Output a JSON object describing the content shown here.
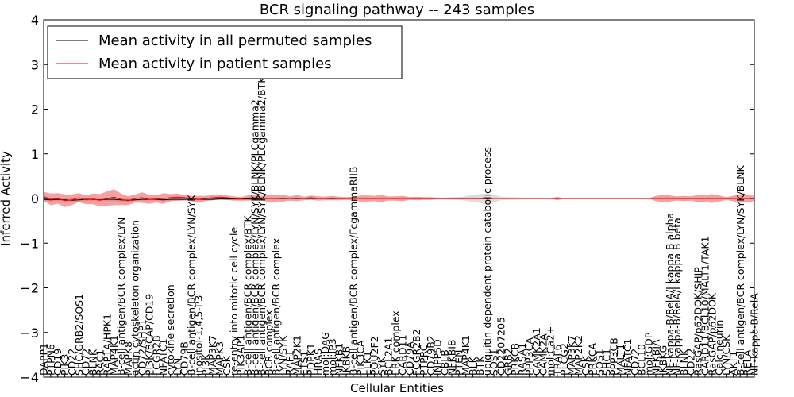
{
  "chart_data": {
    "type": "line",
    "title": "BCR signaling pathway -- 243 samples",
    "xlabel": "Cellular Entities",
    "ylabel": "Inferred Activity",
    "ylim": [
      -4,
      4
    ],
    "yticks": [
      "4",
      "3",
      "2",
      "1",
      "0",
      "−1",
      "−2",
      "−3",
      "−4"
    ],
    "legend": {
      "placement": "top-left",
      "items": [
        {
          "label": "Mean activity in all permuted samples",
          "color": "#000000"
        },
        {
          "label": "Mean activity in patient samples",
          "color": "#ff0000"
        }
      ]
    },
    "categories": [
      "DAPP1",
      "PTPN6",
      "CD19",
      "PIK3",
      "CD22",
      "SHC/GRB2/SOS1",
      "CD72",
      "BLNK",
      "RAC1",
      "RAP1A/HPK1",
      "MAP4K1",
      "B-cell antigen/BCR complex/LYN",
      "MAPK8",
      "actin cytoskeleton organization",
      "CD72/SHP1",
      "PI3K/BCAP/CD19",
      "FCGR2B",
      "NFATC1",
      "cytokine secretion",
      "LYN",
      "CD79B",
      "B-cell antigen/BCR complex/LYN/SYK",
      "inositol-1,4,5-P3",
      "PI3K",
      "MAP3K7",
      "MAPK3",
      "CSK",
      "re-entry into mitotic cell cycle",
      "PIK3AP1",
      "B-cell antigen/BCR complex/BTK",
      "B-cell antigen/BCR complex/LYN/SYK/BLNK/PLCgamma2",
      "B-cell antigen/BCR complex/LYN/SYK/BLNK/PLCgamma2/BTK",
      "BCR complex",
      "B-cell antigen/BCR complex",
      "LYN/SYK",
      "RAF1",
      "MAP2K1",
      "ETS1",
      "PDPK1",
      "HRAS",
      "mol:DAG",
      "mol:IP3",
      "NFKB1",
      "IKBKB",
      "B-cell antigen/BCR complex/FcgammaRIIB",
      "PIK3CA",
      "ELK1",
      "POU2F2",
      "SYK",
      "BCL2A1",
      "ERK complex",
      "CARD11",
      "CD79A",
      "FCGR2B2",
      "PTPRC",
      "CD79B2",
      "INPP5D",
      "CBLB",
      "NFKBIB",
      "PTEN",
      "MAP4K1",
      "BLK",
      "BTK",
      "ubiquitin-dependent protein catabolic process",
      "SOS1",
      "CD2207205",
      "GRB2",
      "PRKCB",
      "RASA1",
      "PPP3CA",
      "CAMK2A1",
      "CAMK2A",
      "mol:Ca2+",
      "TRAF6",
      "PLCG2",
      "MAP3K7",
      "MAP2K2",
      "CSK",
      "PRKCA",
      "SOS1",
      "SHC1",
      "PPP3CB",
      "MALT1",
      "NFATC1",
      "CD72",
      "BCL10",
      "mol:GDP",
      "NFKBIA",
      "IKBKG",
      "NF-kappa-B/RelA/I kappa B alpha",
      "NF-kappa-B/RelA/I kappa B beta",
      "BLNK",
      "CD22",
      "RasGAP/p62DOK/SHIP",
      "CARD11/BCL10/MALT1/TAK1",
      "RasGAP/p62DOK",
      "Calcineurin",
      "LYN/CSK",
      "AKT1",
      "B-cell antigen/BCR complex/LYN/SYK/BLNK",
      "RELA",
      "NF-kappa-B/RelA"
    ],
    "series": [
      {
        "name": "Mean activity in all permuted samples",
        "color": "#000000",
        "values": [
          -0.02,
          -0.03,
          -0.02,
          -0.03,
          -0.04,
          -0.03,
          -0.02,
          -0.02,
          -0.03,
          -0.02,
          -0.02,
          -0.03,
          -0.04,
          -0.03,
          -0.02,
          -0.02,
          -0.02,
          -0.03,
          -0.02,
          -0.02,
          -0.02,
          -0.01,
          -0.02,
          -0.02,
          -0.02,
          -0.01,
          -0.01,
          -0.01,
          -0.01,
          -0.01,
          -0.01,
          0.0,
          0.0,
          0.0,
          0.0,
          0.0,
          0.0,
          0.0,
          0.0,
          0.0,
          0.0,
          0.0,
          0.0,
          0.0,
          0.0,
          0.0,
          0.0,
          0.0,
          0.0,
          0.0,
          0.0,
          0.0,
          0.0,
          0.0,
          0.0,
          0.0,
          0.0,
          0.0,
          0.0,
          0.0,
          0.0,
          0.0,
          0.0,
          -0.01,
          0.0,
          0.0,
          0.0,
          0.0,
          0.0,
          0.0,
          0.0,
          0.0,
          0.0,
          0.0,
          0.0,
          0.0,
          0.0,
          0.0,
          0.0,
          0.0,
          0.0,
          0.0,
          0.0,
          0.0,
          0.0,
          0.0,
          0.0,
          0.0,
          0.0,
          0.0,
          0.0,
          0.0,
          0.0,
          0.0,
          0.0,
          0.0,
          0.0,
          0.0,
          0.0,
          0.0,
          0.0,
          0.0
        ]
      },
      {
        "name": "Mean activity in patient samples",
        "color": "#ff0000",
        "values": [
          0.05,
          -0.02,
          0.0,
          -0.05,
          -0.03,
          0.02,
          -0.03,
          -0.01,
          -0.04,
          0.0,
          0.03,
          -0.02,
          -0.05,
          0.0,
          0.02,
          -0.02,
          -0.01,
          0.0,
          0.02,
          0.03,
          0.02,
          0.0,
          -0.02,
          0.0,
          0.02,
          0.03,
          0.02,
          0.0,
          -0.01,
          0.01,
          0.02,
          0.01,
          0.0,
          0.0,
          0.01,
          0.0,
          0.01,
          0.0,
          0.02,
          0.0,
          0.0,
          0.01,
          0.0,
          0.0,
          0.0,
          0.0,
          0.0,
          0.0,
          0.0,
          0.0,
          0.0,
          0.0,
          0.0,
          0.0,
          0.0,
          0.0,
          0.0,
          0.0,
          0.0,
          0.0,
          0.0,
          0.0,
          0.0,
          0.0,
          0.0,
          0.0,
          0.0,
          0.0,
          0.0,
          0.0,
          0.0,
          0.0,
          0.0,
          0.0,
          0.0,
          0.0,
          0.0,
          0.0,
          0.0,
          0.0,
          0.0,
          0.0,
          0.0,
          0.0,
          0.0,
          0.0,
          0.0,
          0.0,
          0.0,
          0.0,
          0.0,
          0.0,
          0.0,
          0.0,
          0.0,
          0.0,
          0.0,
          0.0,
          0.0,
          0.0,
          0.0,
          0.0
        ]
      }
    ],
    "band_patient": [
      0.1,
      0.13,
      0.12,
      0.14,
      0.12,
      0.1,
      0.1,
      0.12,
      0.14,
      0.16,
      0.18,
      0.13,
      0.1,
      0.09,
      0.12,
      0.1,
      0.08,
      0.12,
      0.08,
      0.08,
      0.06,
      0.06,
      0.08,
      0.06,
      0.06,
      0.05,
      0.05,
      0.05,
      0.04,
      0.06,
      0.06,
      0.05,
      0.08,
      0.07,
      0.08,
      0.05,
      0.07,
      0.04,
      0.05,
      0.05,
      0.04,
      0.05,
      0.04,
      0.03,
      0.04,
      0.07,
      0.07,
      0.06,
      0.08,
      0.05,
      0.05,
      0.06,
      0.03,
      0.04,
      0.03,
      0.03,
      0.02,
      0.02,
      0.02,
      0.02,
      0.02,
      0.02,
      0.02,
      0.0,
      0.0,
      0.0,
      0.0,
      0.0,
      0.0,
      0.0,
      0.0,
      0.0,
      0.0,
      0.04,
      0.0,
      0.0,
      0.0,
      0.0,
      0.0,
      0.0,
      0.0,
      0.0,
      0.0,
      0.0,
      0.0,
      0.0,
      0.0,
      0.06,
      0.08,
      0.07,
      0.05,
      0.06,
      0.05,
      0.08,
      0.08,
      0.1,
      0.07,
      0.03,
      0.06,
      0.1,
      0.08,
      0.06
    ],
    "band_permuted": [
      0.04,
      0.04,
      0.04,
      0.04,
      0.04,
      0.04,
      0.04,
      0.04,
      0.04,
      0.04,
      0.04,
      0.04,
      0.04,
      0.03,
      0.03,
      0.03,
      0.03,
      0.03,
      0.03,
      0.03,
      0.03,
      0.02,
      0.02,
      0.02,
      0.02,
      0.02,
      0.02,
      0.02,
      0.02,
      0.02,
      0.02,
      0.02,
      0.02,
      0.02,
      0.02,
      0.02,
      0.02,
      0.02,
      0.02,
      0.02,
      0.02,
      0.02,
      0.02,
      0.02,
      0.02,
      0.02,
      0.02,
      0.02,
      0.02,
      0.02,
      0.02,
      0.02,
      0.02,
      0.02,
      0.02,
      0.02,
      0.02,
      0.02,
      0.03,
      0.03,
      0.05,
      0.08,
      0.1,
      0.12,
      0.08,
      0.04,
      0.03,
      0.03,
      0.02,
      0.02,
      0.02,
      0.02,
      0.02,
      0.02,
      0.02,
      0.02,
      0.02,
      0.02,
      0.02,
      0.02,
      0.02,
      0.02,
      0.02,
      0.02,
      0.02,
      0.02,
      0.02,
      0.02,
      0.02,
      0.02,
      0.02,
      0.02,
      0.02,
      0.02,
      0.02,
      0.02,
      0.02,
      0.02,
      0.02,
      0.02,
      0.02,
      0.02
    ]
  }
}
